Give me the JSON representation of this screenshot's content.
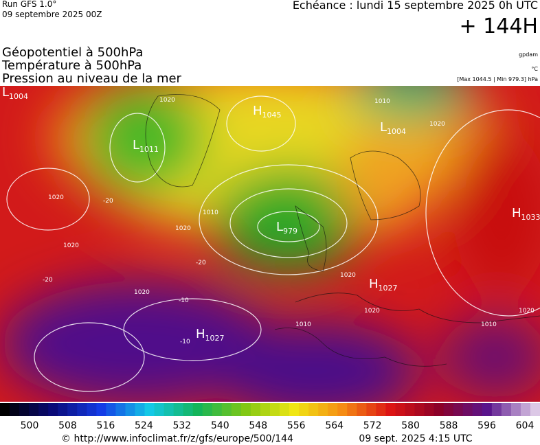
{
  "header": {
    "run": "Run GFS 1.0°",
    "date": "09 septembre 2025 00Z",
    "echeance": "Echéance : lundi 15 septembre 2025 0h UTC",
    "lead": "+ 144H"
  },
  "fields": [
    "Géopotentiel à 500hPa",
    "Température à 500hPa",
    "Pression au niveau de la mer"
  ],
  "units": [
    "gpdam",
    "°C",
    "[Max 1044.5 | Min 979.3] hPa"
  ],
  "map_labels": {
    "centers": [
      {
        "letter": "L",
        "value": "1004"
      },
      {
        "letter": "L",
        "value": "1011"
      },
      {
        "letter": "H",
        "value": "1045"
      },
      {
        "letter": "L",
        "value": "1004"
      },
      {
        "letter": "L",
        "value": "979"
      },
      {
        "letter": "H",
        "value": "1033"
      },
      {
        "letter": "H",
        "value": "1027"
      },
      {
        "letter": "H",
        "value": "1027"
      }
    ],
    "contours": [
      "1020",
      "1010",
      "1020",
      "1020",
      "1010",
      "1020",
      "1020",
      "1020",
      "1020",
      "1020",
      "1010",
      "1020",
      "1010",
      "-20",
      "-20",
      "-10",
      "-10",
      "-20"
    ]
  },
  "scale": {
    "labels": [
      500,
      508,
      516,
      524,
      532,
      540,
      548,
      556,
      564,
      572,
      580,
      588,
      596,
      604
    ]
  },
  "footer": {
    "url": "© http://www.infoclimat.fr/z/gfs/europe/500/144",
    "timestamp": "09 sept. 2025  4:15 UTC"
  }
}
